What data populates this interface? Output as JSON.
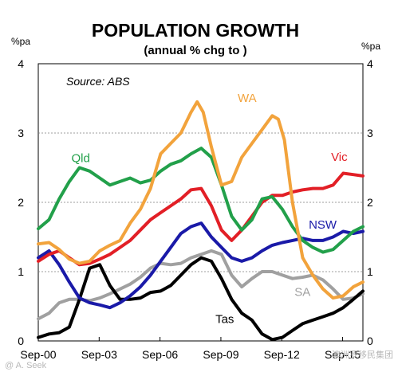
{
  "chart_data": {
    "type": "line",
    "title": "POPULATION GROWTH",
    "subtitle": "(annual % chg to )",
    "ylabel_left": "%pa",
    "ylabel_right": "%pa",
    "source": "Source: ABS",
    "ylim": [
      0,
      4
    ],
    "yticks": [
      0,
      1,
      2,
      3,
      4
    ],
    "y_tick_labels": [
      "0",
      "1",
      "2",
      "3",
      "4"
    ],
    "x_tick_labels": [
      "Sep-00",
      "Sep-03",
      "Sep-06",
      "Sep-09",
      "Sep-12",
      "Sep-15"
    ],
    "x_range": [
      2000.67,
      2016.67
    ],
    "grid": "horizontal dotted",
    "legend": "labels placed on lines",
    "series": [
      {
        "name": "Qld",
        "color": "#22a04a",
        "x": [
          2000.67,
          2001.2,
          2001.7,
          2002.2,
          2002.7,
          2003.2,
          2003.7,
          2004.2,
          2004.7,
          2005.2,
          2005.7,
          2006.2,
          2006.7,
          2007.2,
          2007.7,
          2008.2,
          2008.7,
          2009.2,
          2009.7,
          2010.2,
          2010.7,
          2011.2,
          2011.7,
          2012.2,
          2012.7,
          2013.2,
          2013.7,
          2014.2,
          2014.7,
          2015.2,
          2015.7,
          2016.2,
          2016.67
        ],
        "y": [
          1.62,
          1.75,
          2.05,
          2.3,
          2.5,
          2.45,
          2.35,
          2.25,
          2.3,
          2.35,
          2.28,
          2.32,
          2.45,
          2.55,
          2.6,
          2.7,
          2.78,
          2.65,
          2.25,
          1.8,
          1.6,
          1.75,
          2.05,
          2.08,
          1.9,
          1.65,
          1.45,
          1.35,
          1.28,
          1.32,
          1.45,
          1.58,
          1.65
        ]
      },
      {
        "name": "WA",
        "color": "#f2a33c",
        "x": [
          2000.67,
          2001.2,
          2001.7,
          2002.2,
          2002.7,
          2003.2,
          2003.7,
          2004.2,
          2004.7,
          2005.2,
          2005.7,
          2006.2,
          2006.7,
          2007.2,
          2007.7,
          2008.2,
          2008.5,
          2008.8,
          2009.2,
          2009.7,
          2010.2,
          2010.7,
          2011.2,
          2011.7,
          2012.2,
          2012.5,
          2012.8,
          2013.2,
          2013.7,
          2014.2,
          2014.7,
          2015.2,
          2015.7,
          2016.2,
          2016.67
        ],
        "y": [
          1.4,
          1.42,
          1.32,
          1.18,
          1.12,
          1.15,
          1.3,
          1.38,
          1.45,
          1.7,
          1.9,
          2.2,
          2.7,
          2.85,
          3.0,
          3.3,
          3.45,
          3.3,
          2.8,
          2.25,
          2.3,
          2.65,
          2.85,
          3.05,
          3.25,
          3.2,
          2.9,
          2.0,
          1.2,
          0.95,
          0.75,
          0.62,
          0.65,
          0.78,
          0.85
        ]
      },
      {
        "name": "Vic",
        "color": "#e21f26",
        "x": [
          2000.67,
          2001.2,
          2001.7,
          2002.2,
          2002.7,
          2003.2,
          2003.7,
          2004.2,
          2004.7,
          2005.2,
          2005.7,
          2006.2,
          2006.7,
          2007.2,
          2007.7,
          2008.2,
          2008.7,
          2009.2,
          2009.7,
          2010.2,
          2010.7,
          2011.2,
          2011.7,
          2012.2,
          2012.7,
          2013.2,
          2013.7,
          2014.2,
          2014.7,
          2015.2,
          2015.7,
          2016.2,
          2016.67
        ],
        "y": [
          1.15,
          1.25,
          1.3,
          1.2,
          1.1,
          1.12,
          1.18,
          1.25,
          1.35,
          1.45,
          1.6,
          1.75,
          1.85,
          1.95,
          2.05,
          2.18,
          2.2,
          1.95,
          1.6,
          1.45,
          1.6,
          1.8,
          2.0,
          2.1,
          2.1,
          2.15,
          2.18,
          2.2,
          2.2,
          2.25,
          2.42,
          2.4,
          2.38
        ]
      },
      {
        "name": "NSW",
        "color": "#1a1aa8",
        "x": [
          2000.67,
          2001.2,
          2001.7,
          2002.2,
          2002.7,
          2003.2,
          2003.7,
          2004.2,
          2004.7,
          2005.2,
          2005.7,
          2006.2,
          2006.7,
          2007.2,
          2007.7,
          2008.2,
          2008.7,
          2009.2,
          2009.7,
          2010.2,
          2010.7,
          2011.2,
          2011.7,
          2012.2,
          2012.7,
          2013.2,
          2013.7,
          2014.2,
          2014.7,
          2015.2,
          2015.7,
          2016.2,
          2016.67
        ],
        "y": [
          1.2,
          1.3,
          1.1,
          0.85,
          0.62,
          0.55,
          0.52,
          0.48,
          0.55,
          0.65,
          0.78,
          0.95,
          1.15,
          1.35,
          1.55,
          1.65,
          1.7,
          1.5,
          1.35,
          1.2,
          1.15,
          1.2,
          1.3,
          1.38,
          1.42,
          1.45,
          1.48,
          1.45,
          1.45,
          1.5,
          1.58,
          1.55,
          1.58
        ]
      },
      {
        "name": "SA",
        "color": "#a0a0a0",
        "x": [
          2000.67,
          2001.2,
          2001.7,
          2002.2,
          2002.7,
          2003.2,
          2003.7,
          2004.2,
          2004.7,
          2005.2,
          2005.7,
          2006.2,
          2006.7,
          2007.2,
          2007.7,
          2008.2,
          2008.7,
          2009.2,
          2009.7,
          2010.2,
          2010.7,
          2011.2,
          2011.7,
          2012.2,
          2012.7,
          2013.2,
          2013.7,
          2014.2,
          2014.7,
          2015.2,
          2015.7,
          2016.2,
          2016.67
        ],
        "y": [
          0.32,
          0.4,
          0.55,
          0.6,
          0.6,
          0.58,
          0.62,
          0.68,
          0.75,
          0.82,
          0.92,
          1.05,
          1.12,
          1.1,
          1.12,
          1.2,
          1.25,
          1.3,
          1.25,
          0.95,
          0.78,
          0.9,
          1.0,
          1.0,
          0.95,
          0.9,
          0.92,
          0.95,
          0.88,
          0.75,
          0.6,
          0.62,
          0.68
        ]
      },
      {
        "name": "Tas",
        "color": "#000000",
        "x": [
          2000.67,
          2001.2,
          2001.7,
          2002.2,
          2002.7,
          2003.2,
          2003.7,
          2004.2,
          2004.7,
          2005.2,
          2005.7,
          2006.2,
          2006.7,
          2007.2,
          2007.7,
          2008.2,
          2008.7,
          2009.2,
          2009.7,
          2010.2,
          2010.7,
          2011.2,
          2011.7,
          2012.2,
          2012.7,
          2013.2,
          2013.7,
          2014.2,
          2014.7,
          2015.2,
          2015.7,
          2016.2,
          2016.67
        ],
        "y": [
          0.05,
          0.1,
          0.12,
          0.2,
          0.6,
          1.05,
          1.1,
          0.8,
          0.6,
          0.6,
          0.62,
          0.7,
          0.72,
          0.8,
          0.95,
          1.1,
          1.2,
          1.15,
          0.9,
          0.6,
          0.4,
          0.3,
          0.1,
          0.02,
          0.05,
          0.15,
          0.25,
          0.3,
          0.35,
          0.4,
          0.48,
          0.6,
          0.72
        ]
      }
    ]
  },
  "watermark_left": "@ A. Seek",
  "watermark_right": "澳洲罗移民集团"
}
